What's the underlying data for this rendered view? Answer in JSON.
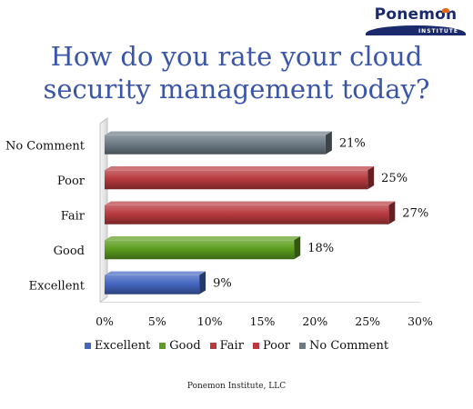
{
  "logo": {
    "name": "Ponemon",
    "subtitle": "INSTITUTE"
  },
  "footer": "Ponemon Institute, LLC",
  "colors": {
    "Excellent": "#4466c0",
    "Good": "#5c9e1f",
    "Fair": "#b83a3e",
    "Poor": "#b83a3e",
    "No Comment": "#6d7b85"
  },
  "chart_data": {
    "type": "bar",
    "orientation": "horizontal",
    "title": "How do you rate your cloud security management today?",
    "categories": [
      "No Comment",
      "Poor",
      "Fair",
      "Good",
      "Excellent"
    ],
    "values": [
      21,
      25,
      27,
      18,
      9
    ],
    "data_labels": [
      "21%",
      "25%",
      "27%",
      "18%",
      "9%"
    ],
    "xlim": [
      0,
      30
    ],
    "xticks": [
      0,
      5,
      10,
      15,
      20,
      25,
      30
    ],
    "xtick_labels": [
      "0%",
      "5%",
      "10%",
      "15%",
      "20%",
      "25%",
      "30%"
    ],
    "xlabel": "",
    "ylabel": "",
    "grid": false,
    "legend": {
      "placement": "bottom",
      "entries": [
        "Excellent",
        "Good",
        "Fair",
        "Poor",
        "No Comment"
      ]
    }
  }
}
